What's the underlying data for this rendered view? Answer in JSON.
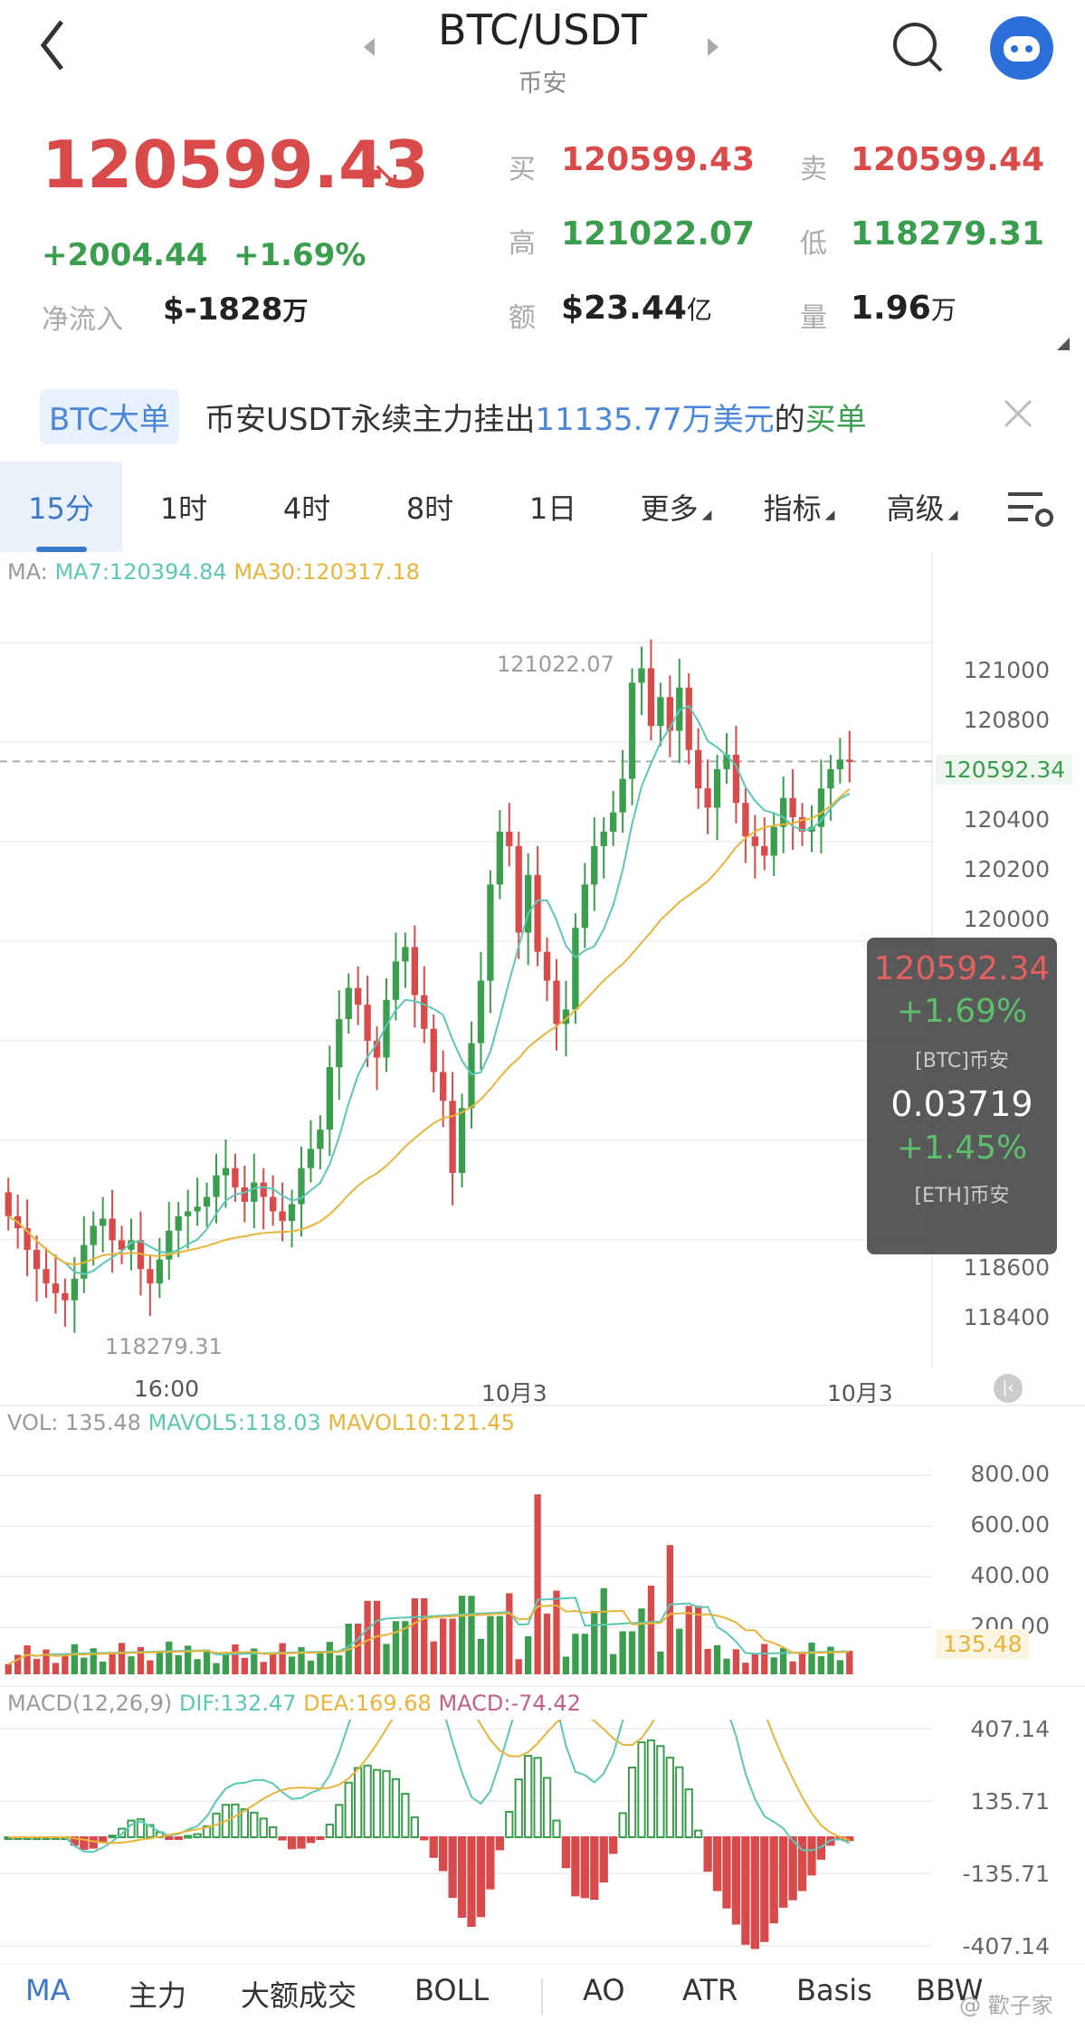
{
  "header": {
    "title": "BTC/USDT",
    "exchange": "币安"
  },
  "price": {
    "last": "120599.43",
    "change": "+2004.44",
    "change_pct": "+1.69%",
    "netflow_label": "净流入",
    "netflow_value": "$-1828",
    "netflow_unit": "万"
  },
  "stats": {
    "buy_label": "买",
    "buy": "120599.43",
    "sell_label": "卖",
    "sell": "120599.44",
    "high_label": "高",
    "high": "121022.07",
    "low_label": "低",
    "low": "118279.31",
    "amount_label": "额",
    "amount": "$23.44",
    "amount_unit": "亿",
    "volume_label": "量",
    "volume": "1.96",
    "volume_unit": "万"
  },
  "notice": {
    "tag": "BTC大单",
    "text1": "币安USDT永续主力挂出",
    "amount": "11135.77万美元",
    "text2": "的",
    "side": "买单"
  },
  "tabs": [
    {
      "label": "15分"
    },
    {
      "label": "1时"
    },
    {
      "label": "4时"
    },
    {
      "label": "8时"
    },
    {
      "label": "1日"
    },
    {
      "label": "更多"
    },
    {
      "label": "指标"
    },
    {
      "label": "高级"
    }
  ],
  "ma_legend": {
    "prefix": "MA:",
    "ma7": "MA7:120394.84",
    "ma30": "MA30:120317.18"
  },
  "price_axis": [
    "121000",
    "120800",
    "120400",
    "120200",
    "120000",
    "118600",
    "118400"
  ],
  "current_price_tag": "120592.34",
  "high_marker": "121022.07",
  "low_marker": "118279.31",
  "time_axis": [
    "16:00",
    "10月3",
    "10月3"
  ],
  "tooltip": {
    "price": "120592.34",
    "pct": "+1.69%",
    "pair1": "[BTC]币安",
    "ratio": "0.03719",
    "pct2": "+1.45%",
    "pair2": "[ETH]币安"
  },
  "vol_legend": {
    "vol": "VOL: 135.48",
    "mavol5": "MAVOL5:118.03",
    "mavol10": "MAVOL10:121.45"
  },
  "vol_axis": [
    "800.00",
    "600.00",
    "400.00",
    "200.00"
  ],
  "vol_tag": "135.48",
  "macd_legend": {
    "name": "MACD(12,26,9)",
    "dif": "DIF:132.47",
    "dea": "DEA:169.68",
    "macd": "MACD:-74.42"
  },
  "macd_axis": [
    "407.14",
    "135.71",
    "-135.71",
    "-407.14"
  ],
  "bottom_tabs": [
    "MA",
    "主力",
    "大额成交",
    "BOLL",
    "AO",
    "ATR",
    "Basis",
    "BBW"
  ],
  "watermark": "@ 歡子家",
  "colors": {
    "up": "#3b9e4e",
    "down": "#d94a4a",
    "ma7": "#5cc7b5",
    "ma30": "#e8b43a",
    "accent": "#3a78c9"
  }
}
